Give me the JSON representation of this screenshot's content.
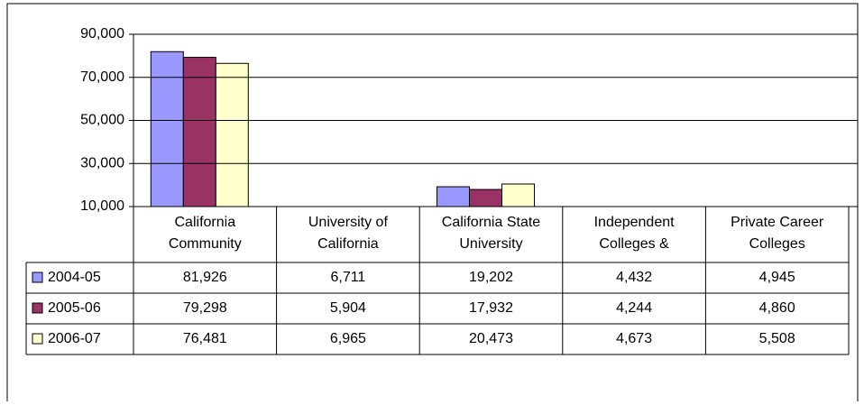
{
  "chart_data": {
    "type": "bar",
    "categories": [
      [
        "California",
        "Community"
      ],
      [
        "University of",
        "California"
      ],
      [
        "California State",
        "University"
      ],
      [
        "Independent",
        "Colleges &"
      ],
      [
        "Private Career",
        "Colleges"
      ]
    ],
    "series": [
      {
        "name": "2004-05",
        "color": "#9999ff",
        "values": [
          81926,
          6711,
          19202,
          4432,
          4945
        ],
        "value_labels": [
          "81,926",
          "6,711",
          "19,202",
          "4,432",
          "4,945"
        ]
      },
      {
        "name": "2005-06",
        "color": "#993366",
        "values": [
          79298,
          5904,
          17932,
          4244,
          4860
        ],
        "value_labels": [
          "79,298",
          "5,904",
          "17,932",
          "4,244",
          "4,860"
        ]
      },
      {
        "name": "2006-07",
        "color": "#ffffcc",
        "values": [
          76481,
          6965,
          20473,
          4673,
          5508
        ],
        "value_labels": [
          "76,481",
          "6,965",
          "20,473",
          "4,673",
          "5,508"
        ]
      }
    ],
    "ylim": [
      10000,
      90000
    ],
    "yticks": [
      {
        "value": 10000,
        "label": "10,000"
      },
      {
        "value": 30000,
        "label": "30,000"
      },
      {
        "value": 50000,
        "label": "50,000"
      },
      {
        "value": 70000,
        "label": "70,000"
      },
      {
        "value": 90000,
        "label": "90,000"
      }
    ],
    "grid": true
  }
}
